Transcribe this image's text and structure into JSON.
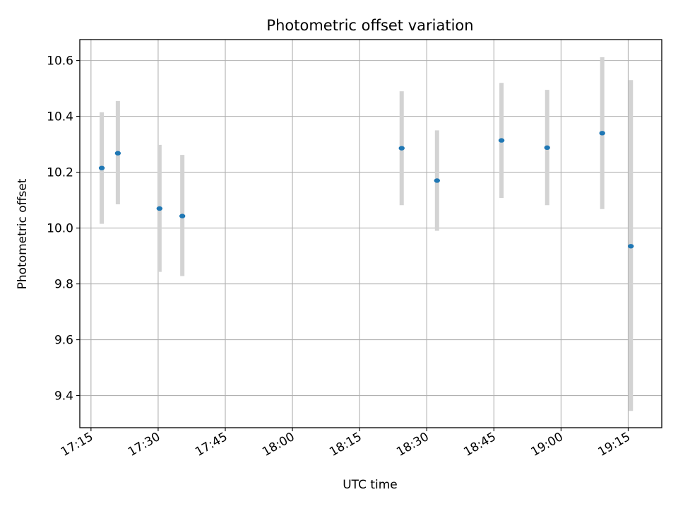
{
  "chart_data": {
    "type": "scatter",
    "title": "Photometric offset variation",
    "xlabel": "UTC time",
    "ylabel": "Photometric offset",
    "grid": true,
    "x_unit": "minutes since 17:00 UTC",
    "xlim": [
      12.5,
      142.5
    ],
    "ylim": [
      9.285,
      10.675
    ],
    "x_ticks": [
      {
        "value": 15,
        "label": "17:15"
      },
      {
        "value": 30,
        "label": "17:30"
      },
      {
        "value": 45,
        "label": "17:45"
      },
      {
        "value": 60,
        "label": "18:00"
      },
      {
        "value": 75,
        "label": "18:15"
      },
      {
        "value": 90,
        "label": "18:30"
      },
      {
        "value": 105,
        "label": "18:45"
      },
      {
        "value": 120,
        "label": "19:00"
      },
      {
        "value": 135,
        "label": "19:15"
      }
    ],
    "y_ticks": [
      {
        "value": 9.4,
        "label": "9.4"
      },
      {
        "value": 9.6,
        "label": "9.6"
      },
      {
        "value": 9.8,
        "label": "9.8"
      },
      {
        "value": 10.0,
        "label": "10.0"
      },
      {
        "value": 10.2,
        "label": "10.2"
      },
      {
        "value": 10.4,
        "label": "10.4"
      },
      {
        "value": 10.6,
        "label": "10.6"
      }
    ],
    "series": [
      {
        "name": "offset",
        "marker_color": "#1f77b4",
        "errorbar_color": "#d3d3d3",
        "points": [
          {
            "x": 17.4,
            "y": 10.215,
            "ylow": 10.015,
            "yhigh": 10.415
          },
          {
            "x": 21.0,
            "y": 10.268,
            "ylow": 10.085,
            "yhigh": 10.455
          },
          {
            "x": 30.3,
            "y": 10.07,
            "ylow": 9.843,
            "yhigh": 10.298
          },
          {
            "x": 35.4,
            "y": 10.043,
            "ylow": 9.828,
            "yhigh": 10.262
          },
          {
            "x": 84.4,
            "y": 10.286,
            "ylow": 10.082,
            "yhigh": 10.49
          },
          {
            "x": 92.3,
            "y": 10.17,
            "ylow": 9.99,
            "yhigh": 10.35
          },
          {
            "x": 106.7,
            "y": 10.314,
            "ylow": 10.108,
            "yhigh": 10.52
          },
          {
            "x": 116.9,
            "y": 10.288,
            "ylow": 10.082,
            "yhigh": 10.495
          },
          {
            "x": 129.2,
            "y": 10.34,
            "ylow": 10.068,
            "yhigh": 10.612
          },
          {
            "x": 135.6,
            "y": 9.935,
            "ylow": 9.345,
            "yhigh": 10.53
          }
        ]
      }
    ]
  }
}
